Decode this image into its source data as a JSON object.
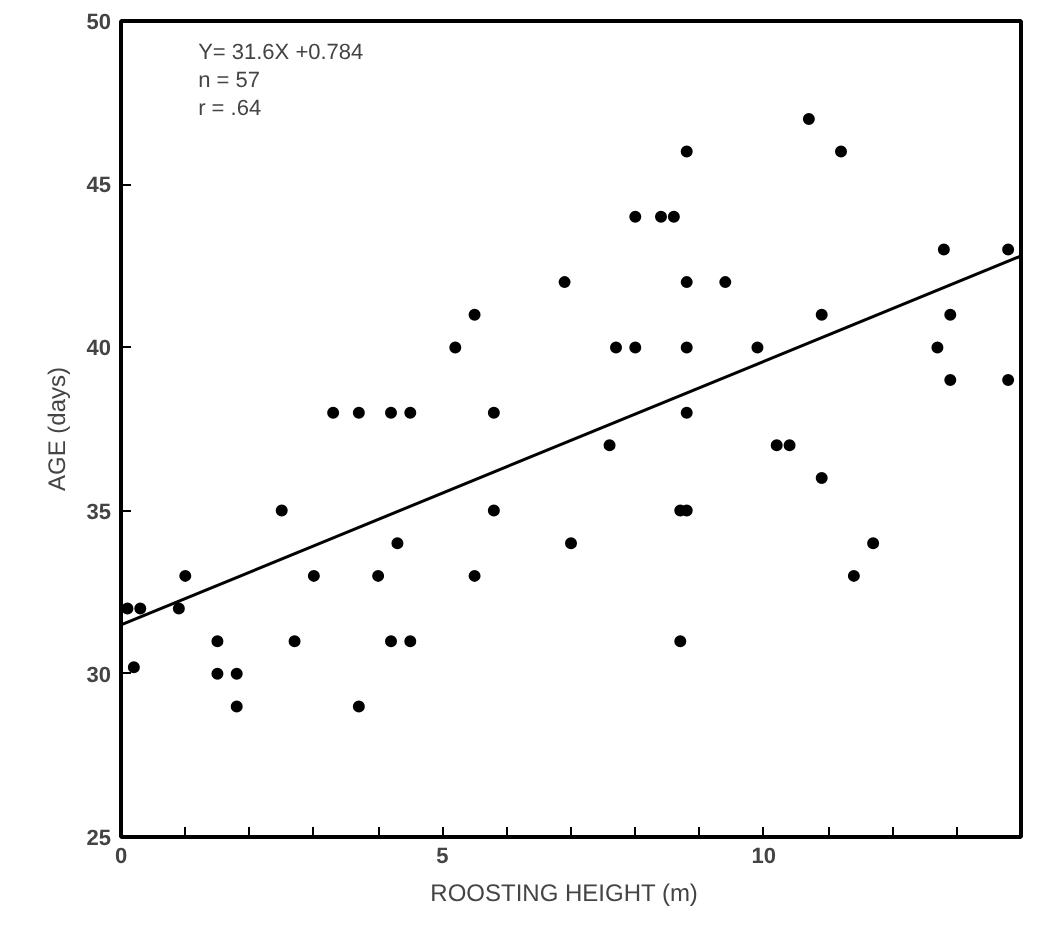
{
  "chart_data": {
    "type": "scatter",
    "xlabel": "ROOSTING HEIGHT   (m)",
    "ylabel": "AGE (days)",
    "annotations": [
      "Y= 31.6X +0.784",
      "n = 57",
      "r = .64"
    ],
    "xlim": [
      0,
      14
    ],
    "ylim": [
      25,
      50
    ],
    "xticks": [
      0,
      {
        "value": 1,
        "label": null
      },
      {
        "value": 2,
        "label": null
      },
      {
        "value": 3,
        "label": null
      },
      {
        "value": 4,
        "label": null
      },
      5,
      {
        "value": 6,
        "label": null
      },
      {
        "value": 7,
        "label": null
      },
      {
        "value": 8,
        "label": null
      },
      {
        "value": 9,
        "label": null
      },
      10,
      {
        "value": 11,
        "label": null
      },
      {
        "value": 12,
        "label": null
      },
      {
        "value": 13,
        "label": null
      }
    ],
    "yticks": [
      25,
      30,
      35,
      40,
      45,
      50
    ],
    "grid": false,
    "series": [
      {
        "color": "#000000",
        "marker": "circle",
        "x": [
          3.3,
          3.7,
          4.2,
          4.5,
          5.8,
          5.2,
          5.5,
          10.7,
          11.2,
          8.8,
          8.0,
          8.4,
          8.6,
          12.8,
          13.8,
          6.9,
          8.8,
          9.4,
          10.9,
          12.9,
          7.7,
          8.0,
          8.8,
          9.9,
          12.7,
          12.9,
          13.8,
          8.8,
          7.6,
          10.2,
          10.4,
          10.9,
          8.7,
          8.8,
          7.0,
          11.7,
          11.4,
          8.7,
          0.1,
          0.3,
          0.2,
          0.9,
          1.0,
          1.5,
          1.5,
          1.8,
          1.8,
          2.5,
          2.7,
          3.0,
          3.7,
          4.0,
          4.3,
          4.2,
          4.5,
          5.5,
          5.8
        ],
        "values": [
          38,
          38,
          38,
          38,
          38,
          40,
          41,
          47,
          46,
          46,
          44,
          44,
          44,
          43,
          43,
          42,
          42,
          42,
          41,
          41,
          40,
          40,
          40,
          40,
          40,
          39,
          39,
          38,
          37,
          37,
          37,
          36,
          35,
          35,
          34,
          34,
          33,
          31,
          32,
          32,
          30.2,
          32,
          33,
          31,
          30,
          30,
          29,
          35,
          31,
          33,
          29,
          33,
          34,
          31,
          31,
          33,
          35
        ]
      },
      {
        "type": "line",
        "color": "#000000",
        "marker": "none",
        "line_style": "solid",
        "x": [
          0,
          14
        ],
        "values": [
          31.5,
          42.8
        ]
      }
    ]
  }
}
